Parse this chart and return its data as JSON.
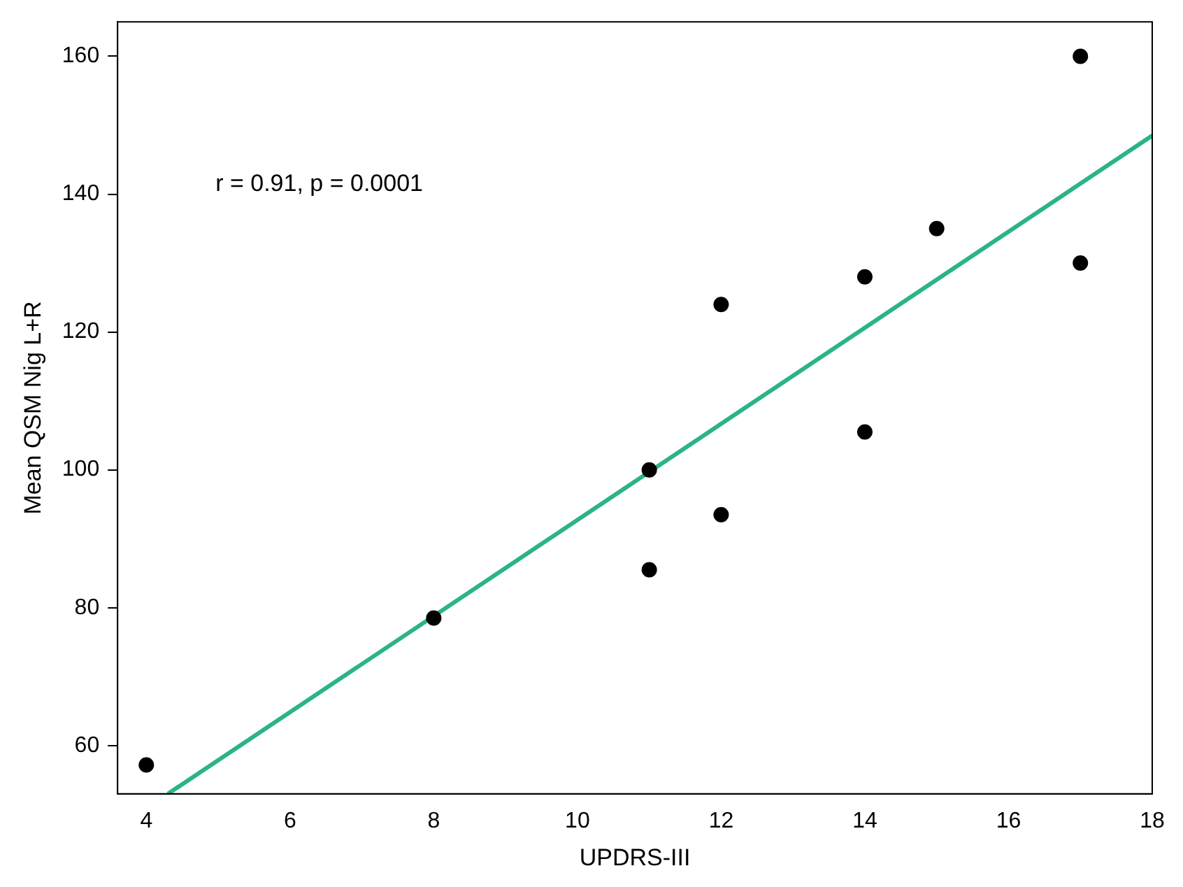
{
  "chart_data": {
    "type": "scatter",
    "xlabel": "UPDRS-III",
    "ylabel": "Mean QSM Nig L+R",
    "annotations": [
      "r = 0.91, p = 0.0001"
    ],
    "xlim": [
      3.6,
      18
    ],
    "xticks": [
      4,
      6,
      8,
      10,
      12,
      14,
      16,
      18
    ],
    "ylim": [
      53,
      165
    ],
    "yticks": [
      60,
      80,
      100,
      120,
      140,
      160
    ],
    "grid": false,
    "legend": false,
    "marker": "circle",
    "series": [
      {
        "type": "scatter",
        "color": "#000000",
        "x": [
          4,
          8,
          11,
          11,
          12,
          12,
          14,
          14,
          15,
          17,
          17
        ],
        "values": [
          57.2,
          78.5,
          100,
          85.5,
          124,
          93.5,
          128,
          105.5,
          135,
          160,
          130
        ]
      },
      {
        "type": "line",
        "color": "#2bb38a",
        "x": [
          4.3,
          18
        ],
        "values": [
          53,
          148.5
        ],
        "line_style": "solid",
        "marker": "none"
      }
    ]
  }
}
